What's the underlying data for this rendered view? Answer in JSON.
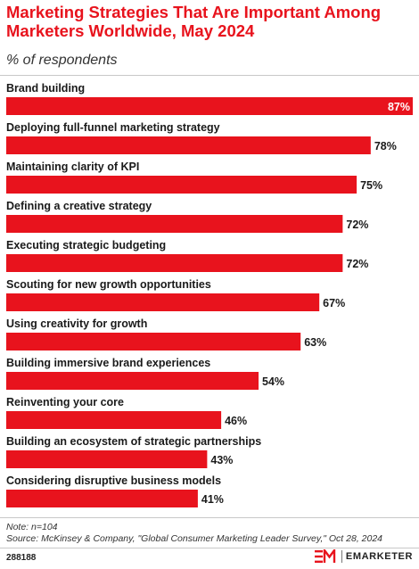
{
  "header": {
    "title": "Marketing Strategies That Are Important Among Marketers Worldwide, May 2024",
    "subtitle": "% of respondents"
  },
  "chart_data": {
    "type": "bar",
    "orientation": "horizontal",
    "title": "Marketing Strategies That Are Important Among Marketers Worldwide, May 2024",
    "subtitle": "% of respondents",
    "xlim": [
      0,
      87
    ],
    "grid": false,
    "bar_color": "#e8131d",
    "categories": [
      "Brand building",
      "Deploying full-funnel marketing strategy",
      "Maintaining clarity of KPI",
      "Defining a creative strategy",
      "Executing strategic budgeting",
      "Scouting for new growth opportunities",
      "Using creativity for growth",
      "Building immersive brand experiences",
      "Reinventing your core",
      "Building an ecosystem of strategic partnerships",
      "Considering disruptive business models"
    ],
    "values": [
      87,
      78,
      75,
      72,
      72,
      67,
      63,
      54,
      46,
      43,
      41
    ],
    "value_labels": [
      "87%",
      "78%",
      "75%",
      "72%",
      "72%",
      "67%",
      "63%",
      "54%",
      "46%",
      "43%",
      "41%"
    ]
  },
  "footer": {
    "note": "Note: n=104",
    "source": "Source: McKinsey & Company, \"Global Consumer Marketing Leader Survey,\" Oct 28, 2024",
    "chart_id": "288188",
    "brand_name": "EMARKETER",
    "brand_color": "#e8131d"
  }
}
